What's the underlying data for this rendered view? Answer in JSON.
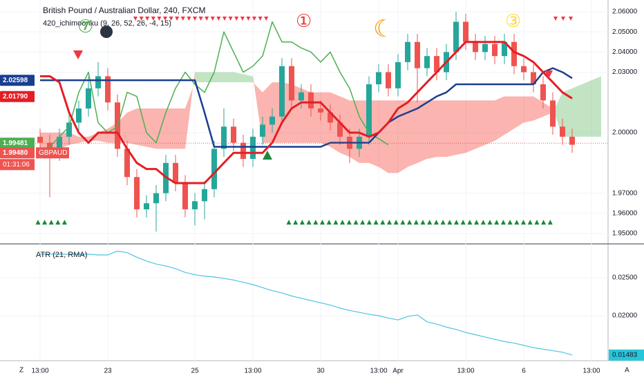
{
  "chart_data": [
    {
      "type": "candlestick",
      "title": "British Pound / Australian Dollar, 240, FXCM",
      "subtitle": "420_ichimoonku (9, 26, 52, 26, -4, 15)",
      "annotations": [
        "⑦",
        "①",
        "☾",
        "③"
      ],
      "categories": [
        "13:00",
        null,
        null,
        null,
        null,
        null,
        null,
        "23",
        null,
        null,
        null,
        null,
        null,
        null,
        null,
        null,
        "25",
        null,
        null,
        null,
        null,
        null,
        "13:00",
        null,
        null,
        null,
        null,
        null,
        null,
        "30",
        null,
        null,
        null,
        null,
        null,
        "13:00",
        null,
        "Apr",
        null,
        null,
        null,
        null,
        null,
        null,
        "13:00",
        null,
        null,
        null,
        null,
        null,
        "6",
        null,
        null,
        null,
        null,
        null,
        null,
        "13:00",
        null
      ],
      "open": [
        1.998,
        1.995,
        1.99,
        1.998,
        2.005,
        2.012,
        2.022,
        2.028,
        2.015,
        1.992,
        1.978,
        1.962,
        1.965,
        1.97,
        1.985,
        1.975,
        1.962,
        1.966,
        1.972,
        1.992,
        2.003,
        1.995,
        1.987,
        1.998,
        2.004,
        2.008,
        2.033,
        2.016,
        2.02,
        2.012,
        2.01,
        2.005,
        1.998,
        1.992,
        1.998,
        2.024,
        2.03,
        2.022,
        2.035,
        2.045,
        2.032,
        2.038,
        2.03,
        2.04,
        2.055,
        2.045,
        2.04,
        2.044,
        2.038,
        2.045,
        2.033,
        2.03,
        2.024,
        2.016,
        2.003,
        1.998,
        null,
        null,
        null
      ],
      "high": [
        2.002,
        1.999,
        2.002,
        2.009,
        2.016,
        2.028,
        2.035,
        2.032,
        2.019,
        1.996,
        1.982,
        1.969,
        1.974,
        1.989,
        1.989,
        1.979,
        1.97,
        1.976,
        1.996,
        2.012,
        2.007,
        1.999,
        2.002,
        2.008,
        2.012,
        2.037,
        2.037,
        2.024,
        2.024,
        2.016,
        2.014,
        2.009,
        2.002,
        2.002,
        2.028,
        2.034,
        2.034,
        2.039,
        2.049,
        2.049,
        2.042,
        2.042,
        2.044,
        2.06,
        2.059,
        2.049,
        2.048,
        2.048,
        2.049,
        2.049,
        2.037,
        2.034,
        2.028,
        2.02,
        2.007,
        2.002,
        null,
        null,
        null
      ],
      "low": [
        1.991,
        1.968,
        1.986,
        1.994,
        2.001,
        2.008,
        2.018,
        2.011,
        1.988,
        1.974,
        1.958,
        1.958,
        1.951,
        1.966,
        1.971,
        1.958,
        1.954,
        1.957,
        1.968,
        1.988,
        1.991,
        1.983,
        1.983,
        1.994,
        2.0,
        2.004,
        2.012,
        2.012,
        2.008,
        2.006,
        2.001,
        1.994,
        1.985,
        1.988,
        1.994,
        2.02,
        2.018,
        2.018,
        2.031,
        2.015,
        2.028,
        2.026,
        2.026,
        2.036,
        2.041,
        2.036,
        2.036,
        2.034,
        2.034,
        2.029,
        2.026,
        2.02,
        2.012,
        1.999,
        1.994,
        1.99,
        null,
        null,
        null
      ],
      "close": [
        1.995,
        1.99,
        1.998,
        2.005,
        2.012,
        2.022,
        2.028,
        2.015,
        1.992,
        1.978,
        1.962,
        1.965,
        1.97,
        1.985,
        1.975,
        1.962,
        1.966,
        1.972,
        1.992,
        2.003,
        1.995,
        1.987,
        1.998,
        2.004,
        2.008,
        2.033,
        2.016,
        2.02,
        2.012,
        2.01,
        2.005,
        1.998,
        1.992,
        1.998,
        2.024,
        2.03,
        2.022,
        2.035,
        2.045,
        2.032,
        2.038,
        2.03,
        2.04,
        2.055,
        2.045,
        2.04,
        2.044,
        2.038,
        2.045,
        2.033,
        2.03,
        2.024,
        2.016,
        2.003,
        1.998,
        1.994,
        null,
        null,
        null
      ],
      "up_color": "#26a69a",
      "down_color": "#ef5350",
      "series": [
        {
          "color": "#4caf50",
          "width": 1.5,
          "values": [
            1.99,
            1.993,
            1.998,
            2.003,
            2.02,
            2.03,
            2.005,
            2.0,
            2.003,
            2.02,
            2.018,
            2.0,
            1.995,
            2.01,
            2.022,
            2.03,
            2.024,
            2.02,
            2.03,
            2.05,
            2.04,
            2.03,
            2.033,
            2.038,
            2.055,
            2.045,
            2.045,
            2.042,
            2.04,
            2.035,
            2.04,
            2.03,
            2.022,
            2.008,
            2.0,
            1.997,
            1.994,
            null,
            null,
            null,
            null,
            null,
            null,
            null,
            null,
            null,
            null,
            null,
            null,
            null,
            null,
            null,
            null,
            null,
            null,
            null,
            null,
            null,
            null
          ]
        },
        {
          "color": "#1a3e8f",
          "width": 2.5,
          "values": [
            2.026,
            2.026,
            2.026,
            2.026,
            2.026,
            2.026,
            2.026,
            2.026,
            2.026,
            2.026,
            2.026,
            2.026,
            2.026,
            2.026,
            2.026,
            2.026,
            2.026,
            2.01,
            1.993,
            1.993,
            1.993,
            1.993,
            1.993,
            1.993,
            1.993,
            1.993,
            1.993,
            1.993,
            1.993,
            1.993,
            1.995,
            1.995,
            1.995,
            1.995,
            1.995,
            2.0,
            2.005,
            2.008,
            2.01,
            2.012,
            2.015,
            2.018,
            2.02,
            2.024,
            2.024,
            2.024,
            2.024,
            2.024,
            2.024,
            2.024,
            2.024,
            2.024,
            2.03,
            2.032,
            2.03,
            2.027,
            null,
            null,
            null
          ]
        },
        {
          "color": "#e31e24",
          "width": 3,
          "values": [
            2.028,
            2.028,
            2.025,
            2.01,
            2.0,
            1.995,
            2.0,
            2.0,
            2.0,
            1.992,
            1.985,
            1.982,
            1.982,
            1.978,
            1.975,
            1.975,
            1.975,
            1.975,
            1.98,
            1.985,
            1.99,
            1.99,
            1.99,
            1.99,
            1.995,
            2.005,
            2.012,
            2.015,
            2.015,
            2.015,
            2.01,
            2.005,
            2.0,
            2.0,
            1.998,
            2.0,
            2.005,
            2.012,
            2.015,
            2.02,
            2.025,
            2.03,
            2.035,
            2.04,
            2.045,
            2.045,
            2.045,
            2.045,
            2.045,
            2.04,
            2.038,
            2.035,
            2.03,
            2.025,
            2.02,
            2.017,
            null,
            null,
            null
          ]
        }
      ],
      "cloud": {
        "up_color": "#66bb6a",
        "down_color": "#f44336",
        "span_a": [
          1.992,
          1.992,
          1.992,
          1.994,
          1.995,
          1.996,
          1.996,
          1.995,
          1.995,
          1.995,
          1.994,
          1.993,
          1.992,
          1.992,
          1.992,
          1.992,
          2.03,
          2.03,
          2.03,
          2.03,
          2.03,
          2.029,
          2.028,
          1.995,
          1.995,
          1.995,
          1.995,
          1.995,
          1.995,
          1.995,
          1.993,
          1.99,
          1.988,
          1.985,
          1.985,
          1.983,
          1.98,
          1.98,
          1.983,
          1.985,
          1.987,
          1.988,
          1.988,
          1.989,
          1.99,
          1.992,
          1.994,
          1.996,
          1.999,
          2.002,
          2.005,
          2.006,
          2.008,
          2.01,
          2.02,
          2.022,
          2.024,
          2.026,
          2.028
        ],
        "span_b": [
          2.0,
          2.0,
          2.0,
          2.0,
          1.998,
          1.998,
          2.0,
          2.002,
          2.005,
          2.01,
          2.012,
          2.012,
          2.012,
          2.012,
          2.012,
          2.012,
          2.025,
          2.025,
          2.025,
          2.025,
          2.025,
          2.025,
          2.025,
          2.02,
          2.025,
          2.025,
          2.024,
          2.022,
          2.02,
          2.02,
          2.02,
          2.018,
          2.016,
          2.016,
          2.016,
          2.016,
          2.016,
          2.016,
          2.016,
          2.016,
          2.016,
          2.016,
          2.016,
          2.016,
          2.016,
          2.016,
          2.016,
          2.016,
          2.018,
          2.018,
          2.018,
          2.018,
          2.015,
          2.012,
          1.998,
          1.998,
          1.998,
          1.998,
          1.998
        ]
      },
      "ylim": [
        1.9452,
        2.0658
      ],
      "yticks": [
        {
          "value": 2.06,
          "label": "2.06000"
        },
        {
          "value": 2.05,
          "label": "2.05000"
        },
        {
          "value": 2.04,
          "label": "2.04000"
        },
        {
          "value": 2.03,
          "label": "2.03000"
        },
        {
          "value": 2.0,
          "label": "2.00000"
        },
        {
          "value": 1.97,
          "label": "1.97000"
        },
        {
          "value": 1.96,
          "label": "1.96000"
        },
        {
          "value": 1.95,
          "label": "1.95000"
        }
      ],
      "price_badges": [
        {
          "value": 2.02598,
          "color": "#1a3e8f"
        },
        {
          "value": 2.0179,
          "label": "2.01790",
          "color": "#e31e24"
        },
        {
          "value": 1.99481,
          "color": "#4caf50"
        },
        {
          "value": 1.9948,
          "label": "1.99480",
          "color": "#ef5350"
        }
      ],
      "symbol": "GBPAUD",
      "countdown": "01:31:06"
    },
    {
      "type": "line",
      "title": "ATR (21, RMA)",
      "color": "#4dc4e0",
      "values": [
        0.0281,
        0.0281,
        0.0281,
        0.0281,
        0.0281,
        0.0281,
        0.028,
        0.028,
        0.0285,
        0.0283,
        0.0277,
        0.0272,
        0.0268,
        0.02655,
        0.0262,
        0.0257,
        0.0254,
        0.0252,
        0.0251,
        0.0249,
        0.0247,
        0.0244,
        0.0241,
        0.0237,
        0.0233,
        0.023,
        0.0226,
        0.0223,
        0.022,
        0.0217,
        0.0214,
        0.021,
        0.0207,
        0.02045,
        0.0202,
        0.02,
        0.0197,
        0.01945,
        0.0199,
        0.0201,
        0.0192,
        0.0189,
        0.0185,
        0.0182,
        0.0178,
        0.0175,
        0.0172,
        0.0169,
        0.0166,
        0.0164,
        0.0161,
        0.0158,
        0.0156,
        0.0154,
        0.0152,
        0.01483,
        null,
        null,
        null
      ],
      "ylim": [
        0.01409,
        0.02927
      ],
      "yticks": [
        {
          "value": 0.025,
          "label": "0.02500"
        },
        {
          "value": 0.02,
          "label": "0.02000"
        }
      ],
      "badge": {
        "value": 0.01483,
        "label": "0.01483",
        "color": "#26c6da"
      }
    }
  ],
  "ui": {
    "left": "Z",
    "right": "A"
  }
}
